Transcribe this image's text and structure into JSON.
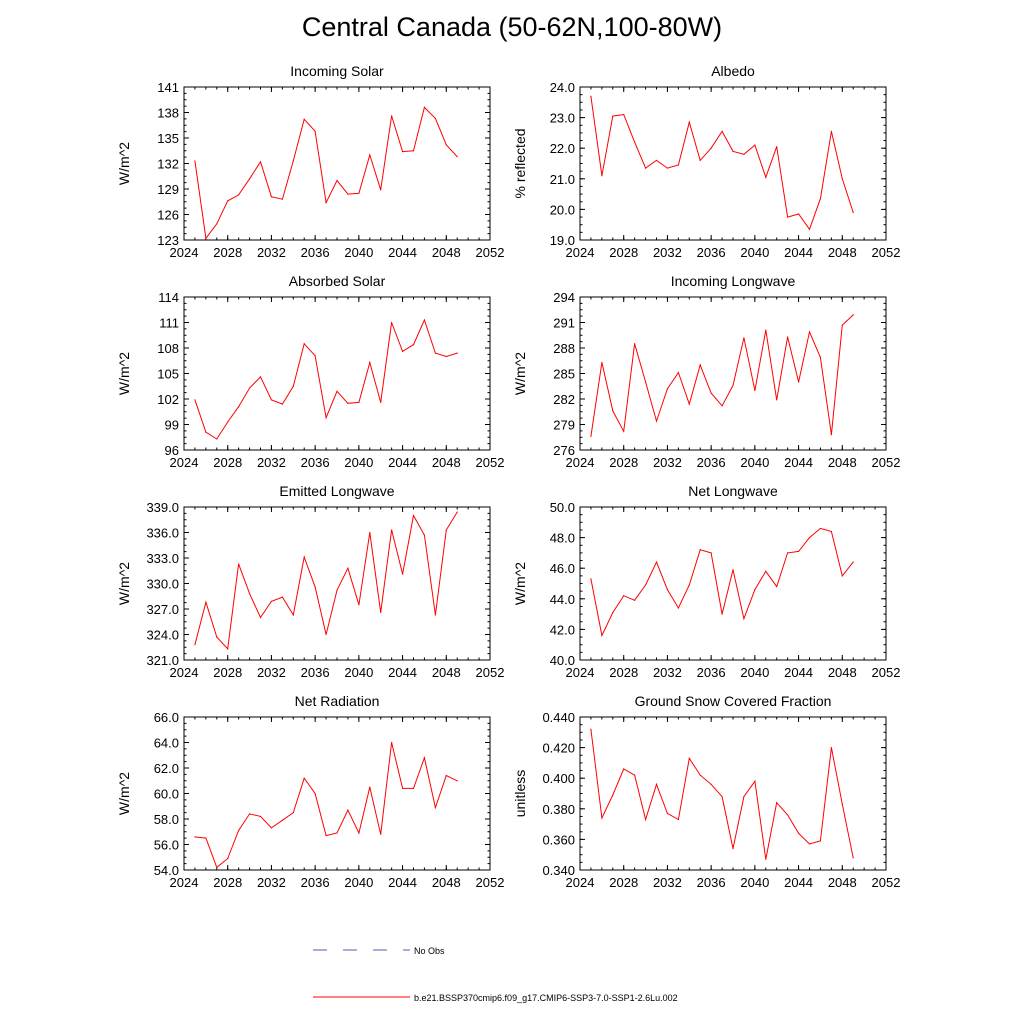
{
  "page_title": "Central Canada (50-62N,100-80W)",
  "legend": {
    "obs_label": "No Obs",
    "model_label": "b.e21.BSSP370cmip6.f09_g17.CMIP6-SSP3-7.0-SSP1-2.6Lu.002",
    "obs_color": "#4a5fb0",
    "model_color": "#ff0000"
  },
  "chart_data": [
    {
      "type": "line",
      "title": "Incoming Solar",
      "ylabel": "W/m^2",
      "xlim": [
        2024,
        2052
      ],
      "ylim": [
        123,
        141
      ],
      "xticks": [
        2024,
        2028,
        2032,
        2036,
        2040,
        2044,
        2048,
        2052
      ],
      "yticks": [
        "123",
        "126",
        "129",
        "132",
        "135",
        "138",
        "141"
      ],
      "x": [
        2025,
        2026,
        2027,
        2028,
        2029,
        2030,
        2031,
        2032,
        2033,
        2034,
        2035,
        2036,
        2037,
        2038,
        2039,
        2040,
        2041,
        2042,
        2043,
        2044,
        2045,
        2046,
        2047,
        2048,
        2049
      ],
      "series": [
        {
          "values": [
            132.3,
            123.2,
            124.9,
            127.6,
            128.3,
            130.2,
            132.2,
            128.1,
            127.8,
            132.3,
            137.2,
            135.8,
            127.4,
            130.0,
            128.4,
            128.5,
            133.0,
            128.9,
            137.6,
            133.4,
            133.5,
            138.6,
            137.3,
            134.2,
            132.8
          ]
        }
      ]
    },
    {
      "type": "line",
      "title": "Albedo",
      "ylabel": "% reflected",
      "xlim": [
        2024,
        2052
      ],
      "ylim": [
        19.0,
        24.0
      ],
      "xticks": [
        2024,
        2028,
        2032,
        2036,
        2040,
        2044,
        2048,
        2052
      ],
      "yticks": [
        "19.0",
        "20.0",
        "21.0",
        "22.0",
        "23.0",
        "24.0"
      ],
      "x": [
        2025,
        2026,
        2027,
        2028,
        2029,
        2030,
        2031,
        2032,
        2033,
        2034,
        2035,
        2036,
        2037,
        2038,
        2039,
        2040,
        2041,
        2042,
        2043,
        2044,
        2045,
        2046,
        2047,
        2048,
        2049
      ],
      "series": [
        {
          "values": [
            23.7,
            21.1,
            23.05,
            23.1,
            22.2,
            21.35,
            21.6,
            21.35,
            21.45,
            22.85,
            21.6,
            22.0,
            22.55,
            21.9,
            21.8,
            22.1,
            21.05,
            22.05,
            19.75,
            19.85,
            19.35,
            20.35,
            22.55,
            21.0,
            19.9
          ]
        }
      ]
    },
    {
      "type": "line",
      "title": "Absorbed Solar",
      "ylabel": "W/m^2",
      "xlim": [
        2024,
        2052
      ],
      "ylim": [
        96,
        114
      ],
      "xticks": [
        2024,
        2028,
        2032,
        2036,
        2040,
        2044,
        2048,
        2052
      ],
      "yticks": [
        "96",
        "99",
        "102",
        "105",
        "108",
        "111",
        "114"
      ],
      "x": [
        2025,
        2026,
        2027,
        2028,
        2029,
        2030,
        2031,
        2032,
        2033,
        2034,
        2035,
        2036,
        2037,
        2038,
        2039,
        2040,
        2041,
        2042,
        2043,
        2044,
        2045,
        2046,
        2047,
        2048,
        2049
      ],
      "series": [
        {
          "values": [
            101.9,
            98.1,
            97.3,
            99.3,
            101.1,
            103.3,
            104.6,
            101.9,
            101.4,
            103.5,
            108.5,
            107.1,
            99.8,
            102.9,
            101.5,
            101.6,
            106.3,
            101.6,
            111.0,
            107.6,
            108.4,
            111.3,
            107.4,
            107.0,
            107.4
          ]
        }
      ]
    },
    {
      "type": "line",
      "title": "Incoming Longwave",
      "ylabel": "W/m^2",
      "xlim": [
        2024,
        2052
      ],
      "ylim": [
        276,
        294
      ],
      "xticks": [
        2024,
        2028,
        2032,
        2036,
        2040,
        2044,
        2048,
        2052
      ],
      "yticks": [
        "276",
        "279",
        "282",
        "285",
        "288",
        "291",
        "294"
      ],
      "x": [
        2025,
        2026,
        2027,
        2028,
        2029,
        2030,
        2031,
        2032,
        2033,
        2034,
        2035,
        2036,
        2037,
        2038,
        2039,
        2040,
        2041,
        2042,
        2043,
        2044,
        2045,
        2046,
        2047,
        2048,
        2049
      ],
      "series": [
        {
          "values": [
            277.6,
            286.3,
            280.6,
            278.2,
            288.5,
            284.0,
            279.4,
            283.2,
            285.1,
            281.4,
            286.0,
            282.7,
            281.2,
            283.6,
            289.2,
            283.0,
            290.1,
            281.9,
            289.3,
            284.0,
            289.9,
            286.9,
            277.8,
            290.7,
            291.9
          ]
        }
      ]
    },
    {
      "type": "line",
      "title": "Emitted Longwave",
      "ylabel": "W/m^2",
      "xlim": [
        2024,
        2052
      ],
      "ylim": [
        321.0,
        339.0
      ],
      "xticks": [
        2024,
        2028,
        2032,
        2036,
        2040,
        2044,
        2048,
        2052
      ],
      "yticks": [
        "321.0",
        "324.0",
        "327.0",
        "330.0",
        "333.0",
        "336.0",
        "339.0"
      ],
      "x": [
        2025,
        2026,
        2027,
        2028,
        2029,
        2030,
        2031,
        2032,
        2033,
        2034,
        2035,
        2036,
        2037,
        2038,
        2039,
        2040,
        2041,
        2042,
        2043,
        2044,
        2045,
        2046,
        2047,
        2048,
        2049
      ],
      "series": [
        {
          "values": [
            322.8,
            327.8,
            323.7,
            322.3,
            332.3,
            328.8,
            326.0,
            327.9,
            328.4,
            326.3,
            333.1,
            329.6,
            324.0,
            329.2,
            331.8,
            327.5,
            336.0,
            326.6,
            336.3,
            331.1,
            338.0,
            335.7,
            326.3,
            336.3,
            338.4
          ]
        }
      ]
    },
    {
      "type": "line",
      "title": "Net Longwave",
      "ylabel": "W/m^2",
      "xlim": [
        2024,
        2052
      ],
      "ylim": [
        40.0,
        50.0
      ],
      "xticks": [
        2024,
        2028,
        2032,
        2036,
        2040,
        2044,
        2048,
        2052
      ],
      "yticks": [
        "40.0",
        "42.0",
        "44.0",
        "46.0",
        "48.0",
        "50.0"
      ],
      "x": [
        2025,
        2026,
        2027,
        2028,
        2029,
        2030,
        2031,
        2032,
        2033,
        2034,
        2035,
        2036,
        2037,
        2038,
        2039,
        2040,
        2041,
        2042,
        2043,
        2044,
        2045,
        2046,
        2047,
        2048,
        2049
      ],
      "series": [
        {
          "values": [
            45.3,
            41.6,
            43.1,
            44.2,
            43.9,
            44.9,
            46.4,
            44.6,
            43.4,
            44.9,
            47.2,
            47.0,
            43.0,
            45.9,
            42.7,
            44.6,
            45.8,
            44.8,
            47.0,
            47.1,
            48.0,
            48.6,
            48.4,
            45.5,
            46.4
          ]
        }
      ]
    },
    {
      "type": "line",
      "title": "Net Radiation",
      "ylabel": "W/m^2",
      "xlim": [
        2024,
        2052
      ],
      "ylim": [
        54.0,
        66.0
      ],
      "xticks": [
        2024,
        2028,
        2032,
        2036,
        2040,
        2044,
        2048,
        2052
      ],
      "yticks": [
        "54.0",
        "56.0",
        "58.0",
        "60.0",
        "62.0",
        "64.0",
        "66.0"
      ],
      "x": [
        2025,
        2026,
        2027,
        2028,
        2029,
        2030,
        2031,
        2032,
        2033,
        2034,
        2035,
        2036,
        2037,
        2038,
        2039,
        2040,
        2041,
        2042,
        2043,
        2044,
        2045,
        2046,
        2047,
        2048,
        2049
      ],
      "series": [
        {
          "values": [
            56.6,
            56.5,
            54.2,
            54.9,
            57.1,
            58.4,
            58.2,
            57.3,
            57.9,
            58.5,
            61.2,
            60.0,
            56.7,
            56.9,
            58.7,
            56.9,
            60.5,
            56.8,
            64.0,
            60.4,
            60.4,
            62.8,
            58.9,
            61.4,
            61.0
          ]
        }
      ]
    },
    {
      "type": "line",
      "title": "Ground Snow Covered Fraction",
      "ylabel": "unitless",
      "xlim": [
        2024,
        2052
      ],
      "ylim": [
        0.34,
        0.44
      ],
      "xticks": [
        2024,
        2028,
        2032,
        2036,
        2040,
        2044,
        2048,
        2052
      ],
      "yticks": [
        "0.340",
        "0.360",
        "0.380",
        "0.400",
        "0.420",
        "0.440"
      ],
      "x": [
        2025,
        2026,
        2027,
        2028,
        2029,
        2030,
        2031,
        2032,
        2033,
        2034,
        2035,
        2036,
        2037,
        2038,
        2039,
        2040,
        2041,
        2042,
        2043,
        2044,
        2045,
        2046,
        2047,
        2048,
        2049
      ],
      "series": [
        {
          "values": [
            0.432,
            0.374,
            0.389,
            0.406,
            0.402,
            0.373,
            0.396,
            0.377,
            0.373,
            0.413,
            0.402,
            0.396,
            0.388,
            0.354,
            0.388,
            0.398,
            0.347,
            0.384,
            0.376,
            0.364,
            0.357,
            0.359,
            0.42,
            0.383,
            0.348
          ]
        }
      ]
    }
  ]
}
